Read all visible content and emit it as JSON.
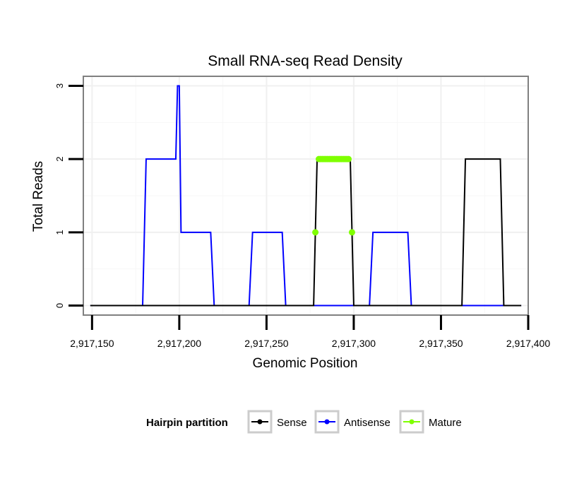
{
  "chart_data": {
    "type": "line",
    "title": "Small RNA-seq Read Density",
    "xlabel": "Genomic Position",
    "ylabel": "Total Reads",
    "xlim": [
      2917145,
      2917400
    ],
    "ylim": [
      -0.13,
      3.13
    ],
    "x_ticks": [
      2917150,
      2917200,
      2917250,
      2917300,
      2917350,
      2917400
    ],
    "x_tick_labels": [
      "2,917,150",
      "2,917,200",
      "2,917,250",
      "2,917,300",
      "2,917,350",
      "2,917,400"
    ],
    "y_ticks": [
      0,
      1,
      2,
      3
    ],
    "y_tick_labels": [
      "0",
      "1",
      "2",
      "3"
    ],
    "grid": true,
    "legend": {
      "title": "Hairpin partition",
      "placement": "bottom",
      "entries": [
        "Sense",
        "Antisense",
        "Mature"
      ]
    },
    "series": [
      {
        "name": "Sense",
        "color": "#000000",
        "kind": "line",
        "x": [
          2917149,
          2917277,
          2917279,
          2917298,
          2917300,
          2917362,
          2917364,
          2917384,
          2917386,
          2917396
        ],
        "y": [
          0,
          0,
          2,
          2,
          0,
          0,
          2,
          2,
          0,
          0
        ]
      },
      {
        "name": "Antisense",
        "color": "#0000ff",
        "kind": "line",
        "x": [
          2917149,
          2917179,
          2917181,
          2917198,
          2917199,
          2917200,
          2917201,
          2917218,
          2917220,
          2917240,
          2917242,
          2917259,
          2917261,
          2917309,
          2917311,
          2917331,
          2917333,
          2917396
        ],
        "y": [
          0,
          0,
          2,
          2,
          3,
          3,
          1,
          1,
          0,
          0,
          1,
          1,
          0,
          0,
          1,
          1,
          0,
          0
        ]
      },
      {
        "name": "Mature",
        "color": "#7fff00",
        "kind": "points",
        "x": [
          2917278,
          2917280,
          2917281,
          2917282,
          2917283,
          2917284,
          2917285,
          2917286,
          2917287,
          2917288,
          2917289,
          2917290,
          2917291,
          2917292,
          2917293,
          2917294,
          2917295,
          2917296,
          2917297,
          2917299
        ],
        "y": [
          1,
          2,
          2,
          2,
          2,
          2,
          2,
          2,
          2,
          2,
          2,
          2,
          2,
          2,
          2,
          2,
          2,
          2,
          2,
          1
        ]
      }
    ]
  }
}
